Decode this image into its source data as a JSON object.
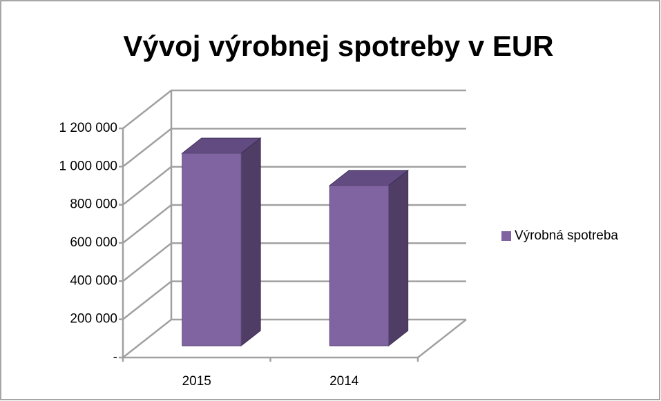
{
  "chart_data": {
    "type": "bar3d",
    "title": "Vývoj výrobnej spotreby v EUR",
    "categories": [
      "2015",
      "2014"
    ],
    "series": [
      {
        "name": "Výrobná spotreba",
        "color": "#8064a2",
        "values": [
          1008000,
          839000
        ]
      }
    ],
    "ylim": [
      0,
      1200000
    ],
    "yticks": [
      {
        "value": 0,
        "label": "-"
      },
      {
        "value": 200000,
        "label": "200 000"
      },
      {
        "value": 400000,
        "label": "400 000"
      },
      {
        "value": 600000,
        "label": "600 000"
      },
      {
        "value": 800000,
        "label": "800 000"
      },
      {
        "value": 1000000,
        "label": "1 000 000"
      },
      {
        "value": 1200000,
        "label": "1 200 000"
      }
    ],
    "grid": true,
    "legend": "right"
  }
}
